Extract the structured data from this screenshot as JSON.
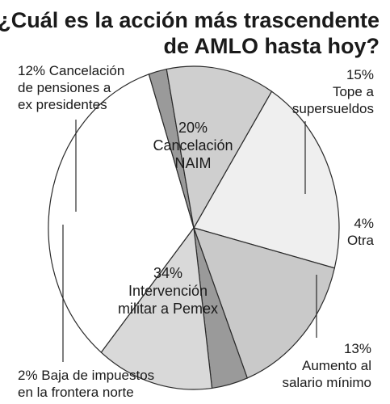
{
  "chart_data": {
    "type": "pie",
    "title": [
      "¿Cuál es la acción más trascendente",
      "de AMLO hasta hoy?"
    ],
    "slices": [
      {
        "pct": "20%",
        "value": 20,
        "label": [
          "Cancelación",
          "NAIM"
        ],
        "color": "#efefef"
      },
      {
        "pct": "15%",
        "value": 15,
        "label": [
          "Tope a",
          "supersueldos"
        ],
        "color": "#c9c9c9"
      },
      {
        "pct": "4%",
        "value": 4,
        "label": [
          "Otra"
        ],
        "color": "#9a9a9a"
      },
      {
        "pct": "13%",
        "value": 13,
        "label": [
          "Aumento al",
          "salario mínimo"
        ],
        "color": "#d9d9d9"
      },
      {
        "pct": "34%",
        "value": 34,
        "label": [
          "Intervención",
          "militar a Pemex"
        ],
        "color": "#ffffff"
      },
      {
        "pct": "2%",
        "value": 2,
        "label": [
          "Baja de impuestos",
          "en la frontera norte"
        ],
        "color": "#9a9a9a"
      },
      {
        "pct": "12%",
        "value": 12,
        "label": [
          "Cancelación",
          "de pensiones a",
          "ex presidentes"
        ],
        "color": "#cfcfcf"
      }
    ]
  }
}
